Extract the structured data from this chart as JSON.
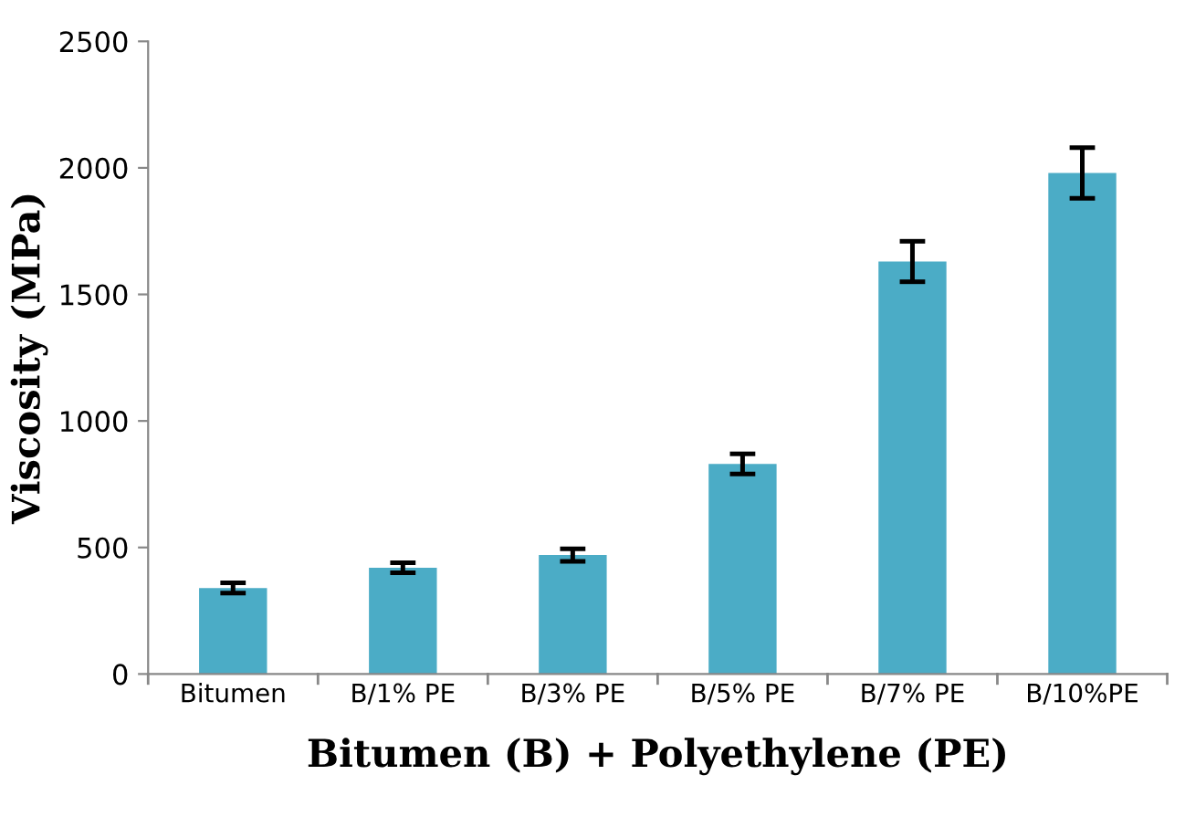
{
  "chart_data": {
    "type": "bar",
    "xlabel": "Bitumen (B) + Polyethylene (PE)",
    "ylabel": "Viscosity (MPa)",
    "categories": [
      "Bitumen",
      "B/1% PE",
      "B/3% PE",
      "B/5% PE",
      "B/7% PE",
      "B/10%PE"
    ],
    "values": [
      340,
      420,
      470,
      830,
      1630,
      1980
    ],
    "errors": [
      20,
      20,
      25,
      40,
      80,
      100
    ],
    "color": "#4bacc6",
    "ylim": [
      0,
      2500
    ],
    "yticks": [
      0,
      500,
      1000,
      1500,
      2000,
      2500
    ],
    "grid": false,
    "legend": false
  }
}
